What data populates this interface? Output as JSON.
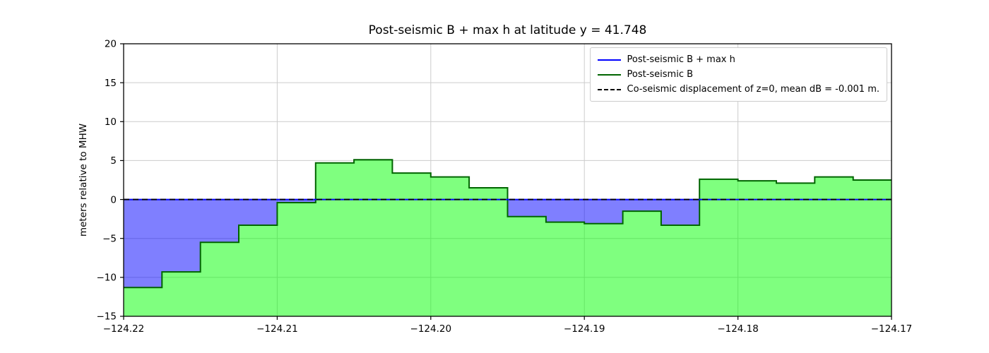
{
  "chart_data": {
    "type": "area",
    "title": "Post-seismic B + max h at latitude y = 41.748",
    "ylabel": "meters relative to MHW",
    "xlabel": "",
    "xlim": [
      -124.22,
      -124.17
    ],
    "ylim": [
      -15,
      20
    ],
    "xtick_values": [
      -124.22,
      -124.21,
      -124.2,
      -124.19,
      -124.18,
      -124.17
    ],
    "xtick_labels": [
      "−124.22",
      "−124.21",
      "−124.20",
      "−124.19",
      "−124.18",
      "−124.17"
    ],
    "ytick_values": [
      -15,
      -10,
      -5,
      0,
      5,
      10,
      15,
      20
    ],
    "ytick_labels": [
      "−15",
      "−10",
      "−5",
      "0",
      "5",
      "10",
      "15",
      "20"
    ],
    "grid": true,
    "legend_position": "upper right",
    "step_edges": [
      -124.22,
      -124.2175,
      -124.215,
      -124.2125,
      -124.21,
      -124.2075,
      -124.205,
      -124.2025,
      -124.2,
      -124.1975,
      -124.195,
      -124.1925,
      -124.19,
      -124.1875,
      -124.185,
      -124.1825,
      -124.18,
      -124.1775,
      -124.175,
      -124.1725,
      -124.17
    ],
    "post_seismic_B": [
      -11.3,
      -9.3,
      -5.5,
      -3.3,
      -0.4,
      4.7,
      5.1,
      3.4,
      2.9,
      1.5,
      -2.2,
      -2.9,
      -3.1,
      -1.5,
      -3.3,
      2.6,
      2.4,
      2.1,
      2.9,
      2.5
    ],
    "B_plus_max_h_level": 0,
    "co_seismic_z0_level": 0,
    "colors": {
      "b_plus_h_line": "#0000ff",
      "b_line": "#006400",
      "b_fill": "rgba(0,255,0,0.5)",
      "water_fill": "rgba(0,0,255,0.5)",
      "dashed_line": "#000000",
      "grid": "#cccccc",
      "frame": "#000000"
    },
    "legend": [
      {
        "label": "Post-seismic B + max h",
        "color": "#0000ff",
        "style": "solid"
      },
      {
        "label": "Post-seismic B",
        "color": "#006400",
        "style": "solid"
      },
      {
        "label": "Co-seismic displacement of z=0, mean dB = -0.001 m.",
        "color": "#000000",
        "style": "dashed"
      }
    ]
  }
}
